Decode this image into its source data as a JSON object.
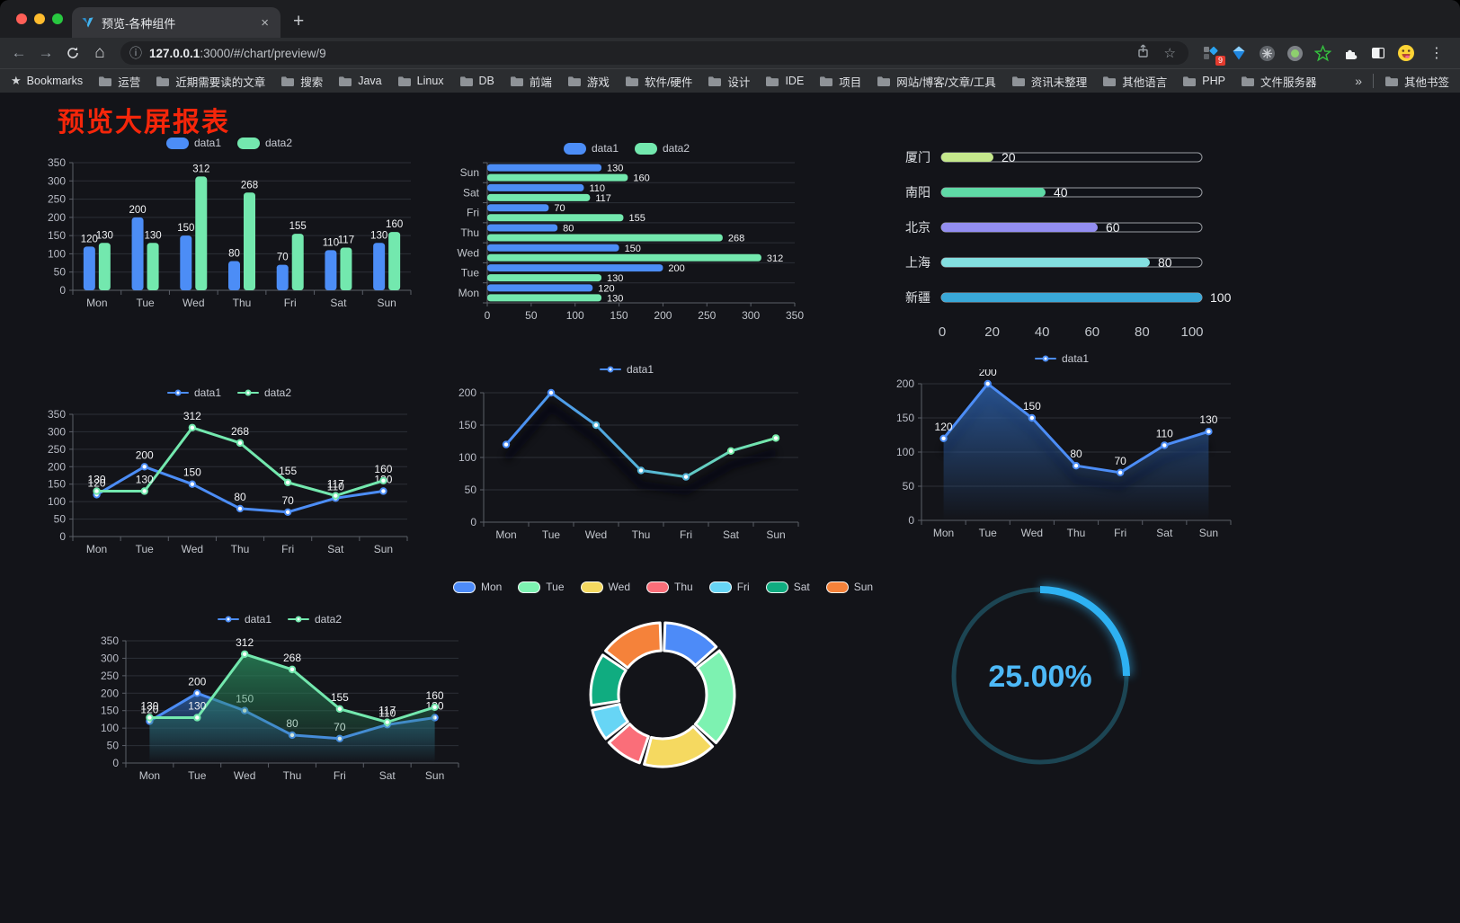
{
  "browser": {
    "tab_title": "预览-各种组件",
    "close_tab_icon": "×",
    "new_tab_icon": "+",
    "back_icon": "←",
    "forward_icon": "→",
    "home_icon": "⌂",
    "info_icon": "ⓘ",
    "url_host": "127.0.0.1",
    "url_rest": ":3000/#/chart/preview/9",
    "bookmark_star_icon": "☆",
    "menu_icon": "⋮",
    "extension_badge": "9",
    "bookmarks_label": "Bookmarks",
    "bookmarks": [
      "运营",
      "近期需要读的文章",
      "搜索",
      "Java",
      "Linux",
      "DB",
      "前端",
      "游戏",
      "软件/硬件",
      "设计",
      "IDE",
      "项目",
      "网站/博客/文章/工具",
      "资讯未整理",
      "其他语言",
      "PHP",
      "文件服务器"
    ],
    "bookmarks_overflow": "»",
    "other_bookmarks": "其他书签"
  },
  "page": {
    "title": "预览大屏报表"
  },
  "colors": {
    "accent_blue": "#4c8df6",
    "accent_green": "#73e8ae",
    "title_red": "#f5260a",
    "gauge_blue": "#2eb1f2"
  },
  "chart_data": [
    {
      "id": "grouped-bar",
      "type": "bar",
      "categories": [
        "Mon",
        "Tue",
        "Wed",
        "Thu",
        "Fri",
        "Sat",
        "Sun"
      ],
      "series": [
        {
          "name": "data1",
          "color": "#4c8df6",
          "values": [
            120,
            200,
            150,
            80,
            70,
            110,
            130
          ]
        },
        {
          "name": "data2",
          "color": "#73e8ae",
          "values": [
            130,
            130,
            312,
            268,
            155,
            117,
            160
          ]
        }
      ],
      "ylim": [
        0,
        350
      ],
      "yticks": [
        0,
        50,
        100,
        150,
        200,
        250,
        300,
        350
      ],
      "legend_position": "top",
      "grid": true
    },
    {
      "id": "horizontal-bar",
      "type": "hbar",
      "categories": [
        "Mon",
        "Tue",
        "Wed",
        "Thu",
        "Fri",
        "Sat",
        "Sun"
      ],
      "categories_top_to_bottom": [
        "Sun",
        "Sat",
        "Fri",
        "Thu",
        "Wed",
        "Tue",
        "Mon"
      ],
      "series": [
        {
          "name": "data1",
          "color": "#4c8df6",
          "values": [
            120,
            200,
            150,
            80,
            70,
            110,
            130
          ]
        },
        {
          "name": "data2",
          "color": "#73e8ae",
          "values": [
            130,
            130,
            312,
            268,
            155,
            117,
            160
          ]
        }
      ],
      "xlim": [
        0,
        350
      ],
      "xticks": [
        0,
        50,
        100,
        150,
        200,
        250,
        300,
        350
      ],
      "legend_position": "top",
      "grid": true
    },
    {
      "id": "capsule",
      "type": "capsule-bar",
      "rows": [
        {
          "label": "厦门",
          "value": 20,
          "color": "#c5e88c"
        },
        {
          "label": "南阳",
          "value": 40,
          "color": "#5fd9a6"
        },
        {
          "label": "北京",
          "value": 60,
          "color": "#938ef1"
        },
        {
          "label": "上海",
          "value": 80,
          "color": "#83dfe0"
        },
        {
          "label": "新疆",
          "value": 100,
          "color": "#39a8d8"
        }
      ],
      "xlim": [
        0,
        100
      ],
      "xticks": [
        0,
        20,
        40,
        60,
        80,
        100
      ]
    },
    {
      "id": "line-dual",
      "type": "line",
      "categories": [
        "Mon",
        "Tue",
        "Wed",
        "Thu",
        "Fri",
        "Sat",
        "Sun"
      ],
      "series": [
        {
          "name": "data1",
          "color": "#4c8df6",
          "values": [
            120,
            200,
            150,
            80,
            70,
            110,
            130
          ],
          "labels": true
        },
        {
          "name": "data2",
          "color": "#73e8ae",
          "values": [
            130,
            130,
            312,
            268,
            155,
            117,
            160
          ],
          "labels": true
        }
      ],
      "ylim": [
        0,
        350
      ],
      "yticks": [
        0,
        50,
        100,
        150,
        200,
        250,
        300,
        350
      ],
      "legend_position": "top",
      "grid": true
    },
    {
      "id": "line-gradient",
      "type": "line",
      "categories": [
        "Mon",
        "Tue",
        "Wed",
        "Thu",
        "Fri",
        "Sat",
        "Sun"
      ],
      "series": [
        {
          "name": "data1",
          "color": "#4a8cf5",
          "stroke_gradient": [
            "#4a8cf5",
            "#54b4d8",
            "#76eba8"
          ],
          "values": [
            120,
            200,
            150,
            80,
            70,
            110,
            130
          ],
          "labels": false,
          "shadow": true
        }
      ],
      "ylim": [
        0,
        200
      ],
      "yticks": [
        0,
        50,
        100,
        150,
        200
      ],
      "legend_position": "top",
      "grid": true
    },
    {
      "id": "line-area",
      "type": "line",
      "categories": [
        "Mon",
        "Tue",
        "Wed",
        "Thu",
        "Fri",
        "Sat",
        "Sun"
      ],
      "series": [
        {
          "name": "data1",
          "color": "#4c8df6",
          "area": [
            "rgba(45,95,165,0.85)",
            "rgba(45,95,165,0.0)"
          ],
          "values": [
            120,
            200,
            150,
            80,
            70,
            110,
            130
          ],
          "labels": true,
          "shadow": true
        }
      ],
      "ylim": [
        0,
        200
      ],
      "yticks": [
        0,
        50,
        100,
        150,
        200
      ],
      "legend_position": "top",
      "grid": true
    },
    {
      "id": "line-area-dual",
      "type": "line",
      "categories": [
        "Mon",
        "Tue",
        "Wed",
        "Thu",
        "Fri",
        "Sat",
        "Sun"
      ],
      "series": [
        {
          "name": "data1",
          "color": "#4c8df6",
          "area": [
            "rgba(45,95,165,0.8)",
            "rgba(45,95,165,0.0)"
          ],
          "values": [
            120,
            200,
            150,
            80,
            70,
            110,
            130
          ],
          "labels": true
        },
        {
          "name": "data2",
          "color": "#73e8ae",
          "area": [
            "rgba(40,135,90,0.8)",
            "rgba(40,135,90,0.0)"
          ],
          "values": [
            130,
            130,
            312,
            268,
            155,
            117,
            160
          ],
          "labels": true
        }
      ],
      "ylim": [
        0,
        350
      ],
      "yticks": [
        0,
        50,
        100,
        150,
        200,
        250,
        300,
        350
      ],
      "legend_position": "top",
      "grid": true
    },
    {
      "id": "donut",
      "type": "pie",
      "items": [
        {
          "name": "Mon",
          "value": 120,
          "color": "#4d8bf8"
        },
        {
          "name": "Tue",
          "value": 200,
          "color": "#7df2b1"
        },
        {
          "name": "Wed",
          "value": 150,
          "color": "#f5d960"
        },
        {
          "name": "Thu",
          "value": 80,
          "color": "#fa6e79"
        },
        {
          "name": "Fri",
          "value": 70,
          "color": "#67d5f5"
        },
        {
          "name": "Sat",
          "value": 110,
          "color": "#10ac80"
        },
        {
          "name": "Sun",
          "value": 130,
          "color": "#f5823a"
        }
      ],
      "legend_position": "top"
    },
    {
      "id": "gauge",
      "type": "gauge",
      "value": 25,
      "label": "25.00%",
      "color": "#2eb1f2",
      "track_color": "#1c4553",
      "text_color": "#4db9f7"
    }
  ]
}
